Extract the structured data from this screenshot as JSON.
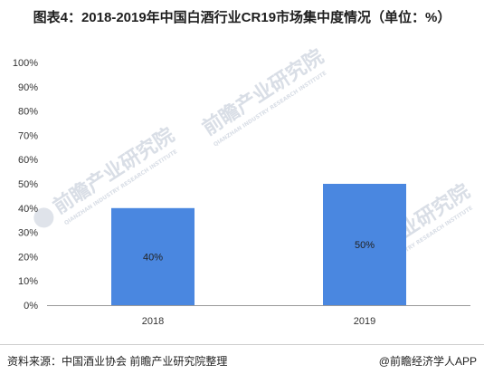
{
  "title": "图表4：2018-2019年中国白酒行业CR19市场集中度情况（单位：%）",
  "watermark": {
    "brand": "前瞻产业研究院",
    "subtitle": "QIANZHAN INDUSTRY RESEARCH INSTITUTE"
  },
  "chart_data": {
    "type": "bar",
    "categories": [
      "2018",
      "2019"
    ],
    "values": [
      40,
      50
    ],
    "data_labels": [
      "40%",
      "50%"
    ],
    "y_ticks": [
      "0%",
      "10%",
      "20%",
      "30%",
      "40%",
      "50%",
      "60%",
      "70%",
      "80%",
      "90%",
      "100%"
    ],
    "ylim": [
      0,
      100
    ],
    "bar_color": "#4a87e0",
    "grid": false
  },
  "footer": {
    "source": "资料来源：中国酒业协会  前瞻产业研究院整理",
    "brand": "@前瞻经济学人APP"
  }
}
